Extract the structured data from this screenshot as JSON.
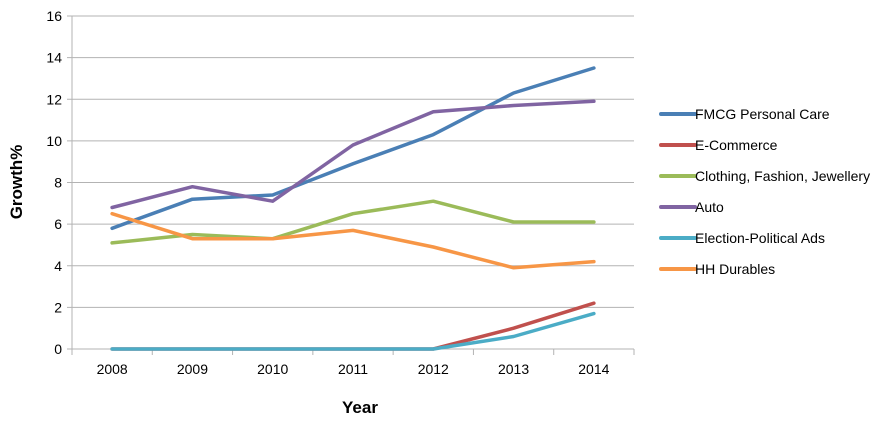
{
  "chart_data": {
    "type": "line",
    "title": "",
    "xlabel": "Year",
    "ylabel": "Growth%",
    "categories": [
      "2008",
      "2009",
      "2010",
      "2011",
      "2012",
      "2013",
      "2014"
    ],
    "ylim": [
      0,
      16
    ],
    "yticks": [
      0,
      2,
      4,
      6,
      8,
      10,
      12,
      14,
      16
    ],
    "grid": "horizontal",
    "legend_position": "right",
    "series": [
      {
        "name": "FMCG Personal Care",
        "color": "#4a7fb5",
        "values": [
          5.8,
          7.2,
          7.4,
          8.9,
          10.3,
          12.3,
          13.5
        ]
      },
      {
        "name": "E-Commerce",
        "color": "#c0504d",
        "values": [
          0,
          0,
          0,
          0,
          0,
          1.0,
          2.2
        ]
      },
      {
        "name": "Clothing, Fashion, Jewellery",
        "color": "#9bbb59",
        "values": [
          5.1,
          5.5,
          5.3,
          6.5,
          7.1,
          6.1,
          6.1
        ]
      },
      {
        "name": "Auto",
        "color": "#8064a2",
        "values": [
          6.8,
          7.8,
          7.1,
          9.8,
          11.4,
          11.7,
          11.9
        ]
      },
      {
        "name": "Election-Political Ads",
        "color": "#4bacc6",
        "values": [
          0,
          0,
          0,
          0,
          0,
          0.6,
          1.7
        ]
      },
      {
        "name": "HH Durables",
        "color": "#f79646",
        "values": [
          6.5,
          5.3,
          5.3,
          5.7,
          4.9,
          3.9,
          4.2
        ]
      }
    ]
  }
}
